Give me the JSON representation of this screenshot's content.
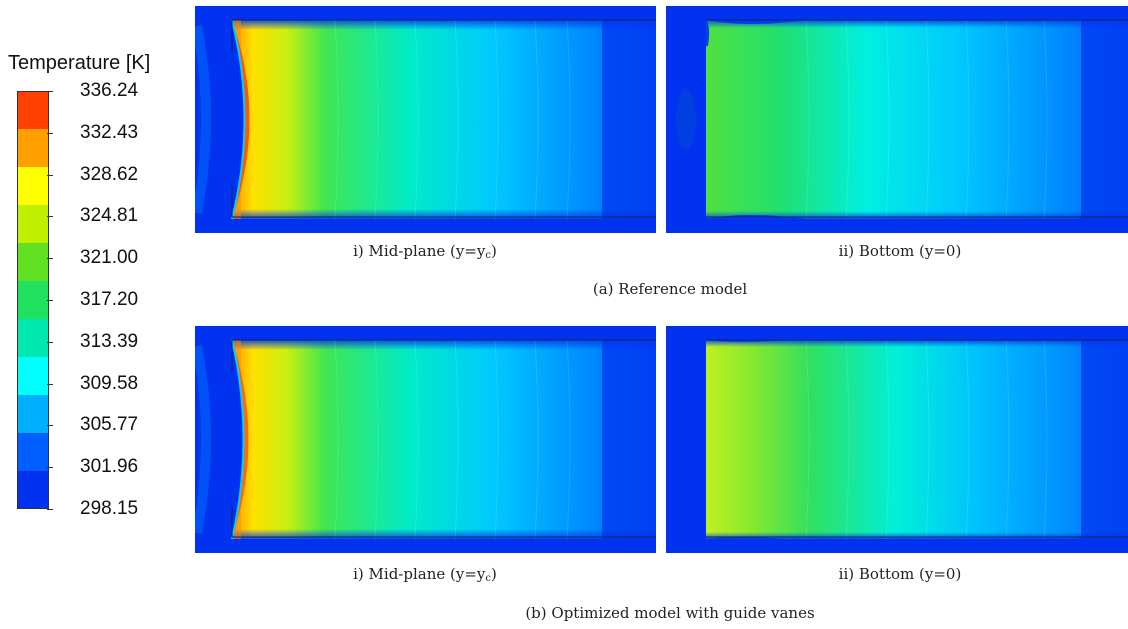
{
  "legend": {
    "title": "Temperature [K]",
    "labels": [
      "336.24",
      "332.43",
      "328.62",
      "324.81",
      "321.00",
      "317.20",
      "313.39",
      "309.58",
      "305.77",
      "301.96",
      "298.15"
    ],
    "band_colors": [
      "#ff4000",
      "#ffa000",
      "#ffff00",
      "#c0f000",
      "#60e020",
      "#20e060",
      "#00e8b0",
      "#00ffff",
      "#00b0ff",
      "#0060ff",
      "#0032f0"
    ]
  },
  "captions": {
    "mid_plane_prefix": "i) Mid-plane (y=y",
    "mid_plane_sub": "c",
    "mid_plane_suffix": ")",
    "bottom": "ii) Bottom (y=0)",
    "group_a": "(a) Reference model",
    "group_b": "(b) Optimized model with guide vanes"
  }
}
